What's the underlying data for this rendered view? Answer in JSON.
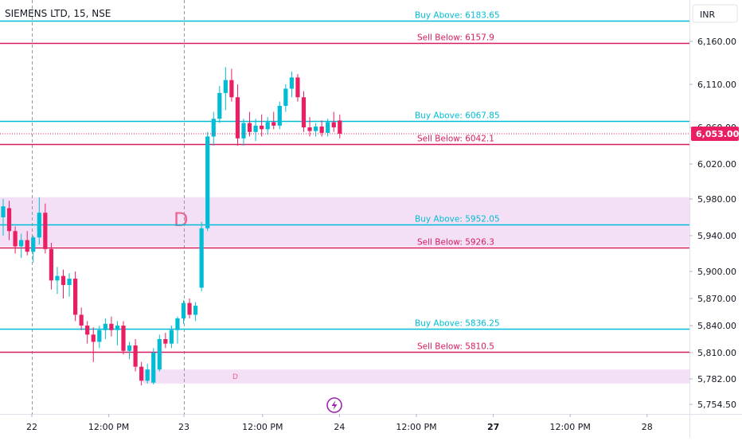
{
  "chart_data": {
    "type": "candlestick",
    "title": "SIEMENS LTD, 15, NSE",
    "currency": "INR",
    "ylim": [
      5745,
      6190
    ],
    "y_ticks": [
      {
        "value": 6160,
        "label": "6,160.00"
      },
      {
        "value": 6110,
        "label": "6,110.00"
      },
      {
        "value": 6060,
        "label": "6,060.00"
      },
      {
        "value": 6020,
        "label": "6,020.00"
      },
      {
        "value": 5980,
        "label": "5,980.00"
      },
      {
        "value": 5940,
        "label": "5,940.00"
      },
      {
        "value": 5900,
        "label": "5,900.00"
      },
      {
        "value": 5870,
        "label": "5,870.00"
      },
      {
        "value": 5840,
        "label": "5,840.00"
      },
      {
        "value": 5810,
        "label": "5,810.00"
      },
      {
        "value": 5782,
        "label": "5,782.00"
      },
      {
        "value": 5754.5,
        "label": "5,754.50"
      }
    ],
    "x_ticks": [
      {
        "label": "22",
        "bold": false
      },
      {
        "label": "12:00 PM",
        "bold": false
      },
      {
        "label": "23",
        "bold": false
      },
      {
        "label": "12:00 PM",
        "bold": false
      },
      {
        "label": "24",
        "bold": false
      },
      {
        "label": "12:00 PM",
        "bold": false
      },
      {
        "label": "27",
        "bold": true
      },
      {
        "label": "12:00 PM",
        "bold": false
      },
      {
        "label": "28",
        "bold": false
      }
    ],
    "session_breaks": [
      "22",
      "23"
    ],
    "last_price": {
      "value": 6053,
      "label": "6,053.00",
      "color": "#e91e63"
    },
    "levels": [
      {
        "label": "Buy Above: 6183.65",
        "value": 6183.65,
        "kind": "buy"
      },
      {
        "label": "Sell Below: 6157.9",
        "value": 6157.9,
        "kind": "sell"
      },
      {
        "label": "Buy Above: 6067.85",
        "value": 6067.85,
        "kind": "buy"
      },
      {
        "label": "Sell Below: 6042.1",
        "value": 6042.1,
        "kind": "sell"
      },
      {
        "label": "Buy Above: 5952.05",
        "value": 5952.05,
        "kind": "buy"
      },
      {
        "label": "Sell Below: 5926.3",
        "value": 5926.3,
        "kind": "sell"
      },
      {
        "label": "Buy Above: 5836.25",
        "value": 5836.25,
        "kind": "buy"
      },
      {
        "label": "Sell Below: 5810.5",
        "value": 5810.5,
        "kind": "sell"
      }
    ],
    "zones": [
      {
        "low": 5928,
        "high": 5982,
        "label": "D",
        "label_size": "large"
      },
      {
        "low": 5777,
        "high": 5792,
        "label": "D",
        "label_size": "small"
      }
    ],
    "candles": [
      {
        "o": 5960,
        "h": 5980,
        "l": 5940,
        "c": 5972
      },
      {
        "o": 5970,
        "h": 5978,
        "l": 5935,
        "c": 5945
      },
      {
        "o": 5945,
        "h": 5950,
        "l": 5920,
        "c": 5928
      },
      {
        "o": 5928,
        "h": 5942,
        "l": 5915,
        "c": 5935
      },
      {
        "o": 5935,
        "h": 5945,
        "l": 5918,
        "c": 5922
      },
      {
        "o": 5922,
        "h": 5940,
        "l": 5910,
        "c": 5938
      },
      {
        "o": 5938,
        "h": 5982,
        "l": 5930,
        "c": 5965
      },
      {
        "o": 5965,
        "h": 5975,
        "l": 5920,
        "c": 5925
      },
      {
        "o": 5925,
        "h": 5932,
        "l": 5880,
        "c": 5890
      },
      {
        "o": 5890,
        "h": 5905,
        "l": 5875,
        "c": 5895
      },
      {
        "o": 5895,
        "h": 5902,
        "l": 5870,
        "c": 5885
      },
      {
        "o": 5885,
        "h": 5898,
        "l": 5872,
        "c": 5892
      },
      {
        "o": 5892,
        "h": 5900,
        "l": 5845,
        "c": 5852
      },
      {
        "o": 5852,
        "h": 5860,
        "l": 5835,
        "c": 5840
      },
      {
        "o": 5840,
        "h": 5845,
        "l": 5820,
        "c": 5830
      },
      {
        "o": 5830,
        "h": 5838,
        "l": 5800,
        "c": 5822
      },
      {
        "o": 5822,
        "h": 5840,
        "l": 5815,
        "c": 5835
      },
      {
        "o": 5835,
        "h": 5848,
        "l": 5825,
        "c": 5842
      },
      {
        "o": 5842,
        "h": 5850,
        "l": 5828,
        "c": 5835
      },
      {
        "o": 5835,
        "h": 5845,
        "l": 5818,
        "c": 5840
      },
      {
        "o": 5840,
        "h": 5845,
        "l": 5808,
        "c": 5812
      },
      {
        "o": 5812,
        "h": 5822,
        "l": 5803,
        "c": 5818
      },
      {
        "o": 5818,
        "h": 5825,
        "l": 5790,
        "c": 5795
      },
      {
        "o": 5795,
        "h": 5800,
        "l": 5775,
        "c": 5780
      },
      {
        "o": 5780,
        "h": 5798,
        "l": 5777,
        "c": 5792
      },
      {
        "o": 5778,
        "h": 5815,
        "l": 5776,
        "c": 5810
      },
      {
        "o": 5792,
        "h": 5830,
        "l": 5790,
        "c": 5825
      },
      {
        "o": 5825,
        "h": 5832,
        "l": 5815,
        "c": 5820
      },
      {
        "o": 5820,
        "h": 5840,
        "l": 5815,
        "c": 5835
      },
      {
        "o": 5835,
        "h": 5850,
        "l": 5820,
        "c": 5848
      },
      {
        "o": 5848,
        "h": 5868,
        "l": 5842,
        "c": 5865
      },
      {
        "o": 5865,
        "h": 5870,
        "l": 5848,
        "c": 5852
      },
      {
        "o": 5852,
        "h": 5866,
        "l": 5845,
        "c": 5862
      },
      {
        "o": 5882,
        "h": 5955,
        "l": 5878,
        "c": 5948
      },
      {
        "o": 5948,
        "h": 6055,
        "l": 5945,
        "c": 6050
      },
      {
        "o": 6050,
        "h": 6078,
        "l": 6040,
        "c": 6070
      },
      {
        "o": 6070,
        "h": 6108,
        "l": 6065,
        "c": 6100
      },
      {
        "o": 6100,
        "h": 6130,
        "l": 6080,
        "c": 6115
      },
      {
        "o": 6115,
        "h": 6128,
        "l": 6090,
        "c": 6095
      },
      {
        "o": 6095,
        "h": 6110,
        "l": 6040,
        "c": 6048
      },
      {
        "o": 6048,
        "h": 6070,
        "l": 6040,
        "c": 6065
      },
      {
        "o": 6065,
        "h": 6078,
        "l": 6050,
        "c": 6055
      },
      {
        "o": 6055,
        "h": 6070,
        "l": 6045,
        "c": 6062
      },
      {
        "o": 6062,
        "h": 6075,
        "l": 6050,
        "c": 6058
      },
      {
        "o": 6058,
        "h": 6072,
        "l": 6052,
        "c": 6066
      },
      {
        "o": 6066,
        "h": 6078,
        "l": 6058,
        "c": 6062
      },
      {
        "o": 6062,
        "h": 6090,
        "l": 6058,
        "c": 6085
      },
      {
        "o": 6085,
        "h": 6110,
        "l": 6078,
        "c": 6105
      },
      {
        "o": 6105,
        "h": 6125,
        "l": 6095,
        "c": 6118
      },
      {
        "o": 6118,
        "h": 6122,
        "l": 6090,
        "c": 6095
      },
      {
        "o": 6095,
        "h": 6102,
        "l": 6055,
        "c": 6060
      },
      {
        "o": 6060,
        "h": 6072,
        "l": 6050,
        "c": 6056
      },
      {
        "o": 6056,
        "h": 6065,
        "l": 6050,
        "c": 6061
      },
      {
        "o": 6061,
        "h": 6068,
        "l": 6050,
        "c": 6054
      },
      {
        "o": 6054,
        "h": 6070,
        "l": 6050,
        "c": 6066
      },
      {
        "o": 6066,
        "h": 6078,
        "l": 6055,
        "c": 6060
      },
      {
        "o": 6068,
        "h": 6075,
        "l": 6048,
        "c": 6053
      }
    ]
  }
}
